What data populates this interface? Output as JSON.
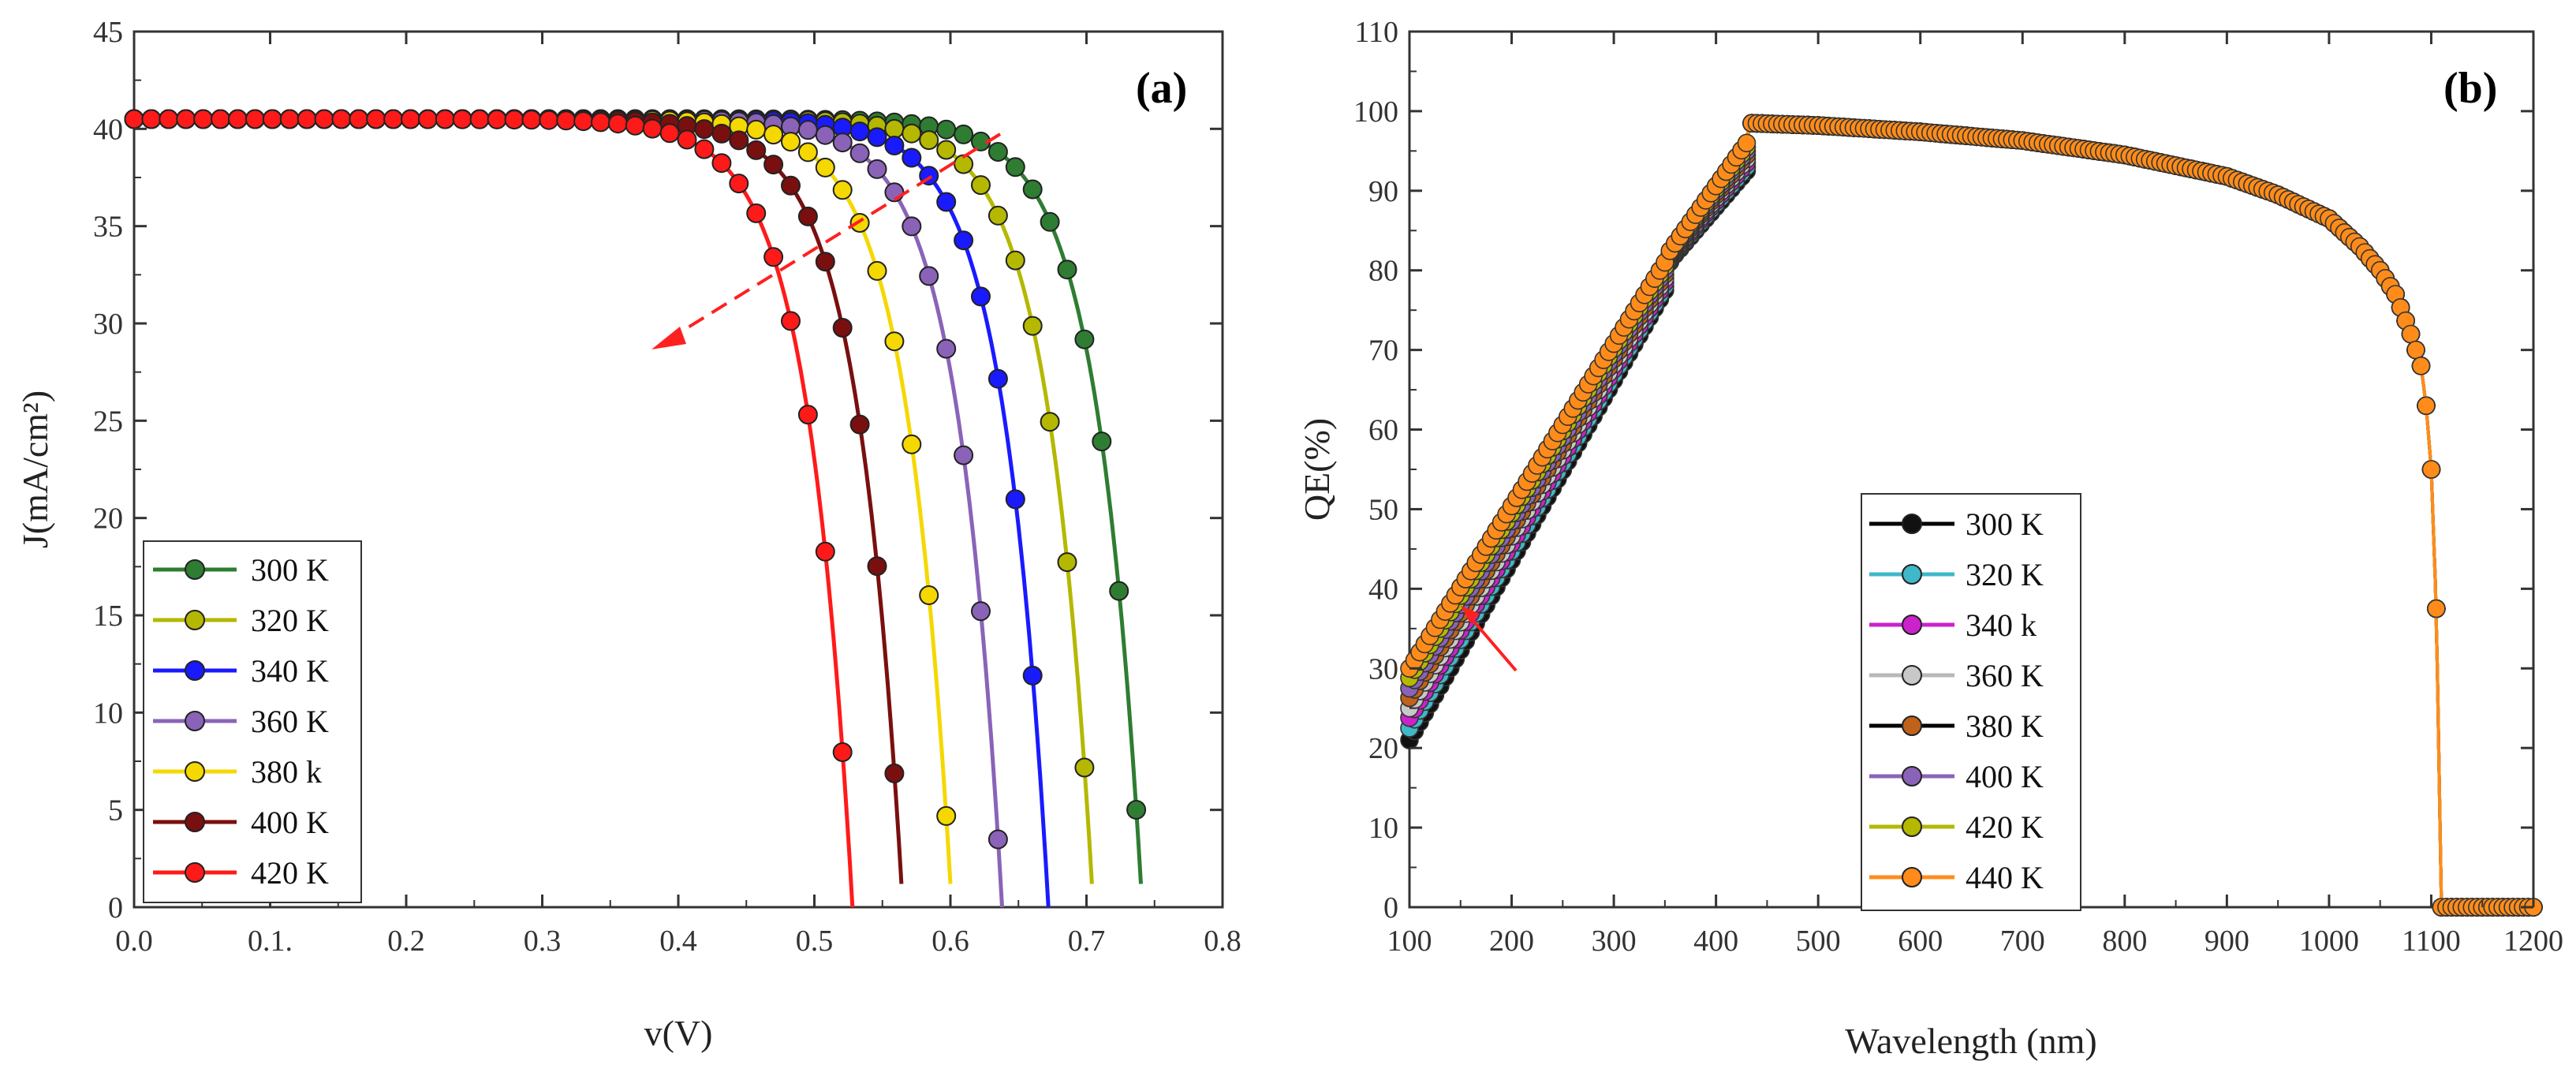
{
  "colors": {
    "300K": "#2e7d32",
    "320K": "#b5b800",
    "340K": "#1a1aff",
    "360K": "#8a63b8",
    "380k": "#f5d800",
    "400K": "#7a0f0f",
    "420K": "#ff1a1a",
    "440K": "#ff8c1a",
    "qe320": "#3fb8c8",
    "qe340": "#cc22cc",
    "qe360": "#b8b8b8",
    "qe380": "#c0621a",
    "arrow": "#ff2020"
  },
  "chart_data": [
    {
      "type": "line",
      "panel_label": "(a)",
      "title": "",
      "xlabel": "v(V)",
      "ylabel": "J(mA/cm²)",
      "xlim": [
        0,
        0.8
      ],
      "ylim": [
        0,
        45
      ],
      "x_ticks": [
        0,
        0.1,
        0.2,
        0.3,
        0.4,
        0.5,
        0.6,
        0.7,
        0.8
      ],
      "x_tick_labels": [
        "0.0",
        "0.1.",
        "0.2",
        "0.3",
        "0.4",
        "0.5",
        "0.6",
        "0.7",
        "0.8"
      ],
      "y_ticks": [
        0,
        5,
        10,
        15,
        20,
        25,
        30,
        35,
        40,
        45
      ],
      "y_tick_labels": [
        "0",
        "5",
        "10",
        "15",
        "20",
        "25",
        "30",
        "35",
        "40",
        "45"
      ],
      "legend_position": "bottom-left",
      "annotation": "dashed red arrow pointing toward lower voltage with increasing temperature",
      "series": [
        {
          "name": "300 K",
          "color_key": "300K",
          "jsc": 40.5,
          "voc": 0.741,
          "alpha": 30
        },
        {
          "name": "320 K",
          "color_key": "320K",
          "jsc": 40.5,
          "voc": 0.705,
          "alpha": 30
        },
        {
          "name": "340 K",
          "color_key": "340K",
          "jsc": 40.5,
          "voc": 0.672,
          "alpha": 30
        },
        {
          "name": "360 K",
          "color_key": "360K",
          "jsc": 40.5,
          "voc": 0.638,
          "alpha": 30
        },
        {
          "name": "380 k",
          "color_key": "380k",
          "jsc": 40.5,
          "voc": 0.601,
          "alpha": 30
        },
        {
          "name": "400 K",
          "color_key": "400K",
          "jsc": 40.5,
          "voc": 0.565,
          "alpha": 30
        },
        {
          "name": "420 K",
          "color_key": "420K",
          "jsc": 40.5,
          "voc": 0.528,
          "alpha": 30
        }
      ]
    },
    {
      "type": "line",
      "panel_label": "(b)",
      "title": "",
      "xlabel": "Wavelength (nm)",
      "ylabel": "QE(%)",
      "xlim": [
        100,
        1200
      ],
      "ylim": [
        0,
        110
      ],
      "x_ticks": [
        100,
        200,
        300,
        400,
        500,
        600,
        700,
        800,
        900,
        1000,
        1100,
        1200
      ],
      "x_tick_labels": [
        "100",
        "200",
        "300",
        "400",
        "500",
        "600",
        "700",
        "800",
        "900",
        "1000",
        "1100",
        "1200"
      ],
      "y_ticks": [
        0,
        10,
        20,
        30,
        40,
        50,
        60,
        70,
        80,
        90,
        100,
        110
      ],
      "y_tick_labels": [
        "0",
        "10",
        "20",
        "30",
        "40",
        "50",
        "60",
        "70",
        "80",
        "90",
        "100",
        "110"
      ],
      "legend_position": "center-left",
      "annotation": "red arrow near 150 nm indicating QE increase with temperature",
      "shared_profile": [
        [
          430,
          98.5
        ],
        [
          500,
          98.2
        ],
        [
          600,
          97.4
        ],
        [
          700,
          96.3
        ],
        [
          800,
          94.5
        ],
        [
          900,
          91.8
        ],
        [
          950,
          89.5
        ],
        [
          1000,
          86.5
        ],
        [
          1030,
          83.0
        ],
        [
          1050,
          80.0
        ],
        [
          1065,
          77.0
        ],
        [
          1080,
          72.0
        ],
        [
          1090,
          68.0
        ],
        [
          1095,
          63.0
        ],
        [
          1100,
          55.0
        ],
        [
          1105,
          37.5
        ],
        [
          1110,
          0
        ],
        [
          1200,
          0
        ]
      ],
      "series": [
        {
          "name": "300 K",
          "color_key": "300K",
          "marker_color": "#111111",
          "line_color": "#000000",
          "qe_at_100": 21.0,
          "qe_at_350": 77.5,
          "qe_at_360": 82.0,
          "qe_at_430": 92.5
        },
        {
          "name": "320 K",
          "color_key": "qe320",
          "marker_color": "#3fb8c8",
          "line_color": "#3fb8c8",
          "qe_at_100": 22.5,
          "qe_at_350": 78.0,
          "qe_at_360": 82.2,
          "qe_at_430": 93.0
        },
        {
          "name": "340 k",
          "color_key": "qe340",
          "marker_color": "#cc22cc",
          "line_color": "#cc22cc",
          "qe_at_100": 23.8,
          "qe_at_350": 78.5,
          "qe_at_360": 82.4,
          "qe_at_430": 93.5
        },
        {
          "name": "360 K",
          "color_key": "qe360",
          "marker_color": "#c8c8c8",
          "line_color": "#b8b8b8",
          "qe_at_100": 25.0,
          "qe_at_350": 79.0,
          "qe_at_360": 82.6,
          "qe_at_430": 94.0
        },
        {
          "name": "380 K",
          "color_key": "qe380",
          "marker_color": "#c0621a",
          "line_color": "#000000",
          "qe_at_100": 26.3,
          "qe_at_350": 79.5,
          "qe_at_360": 82.8,
          "qe_at_430": 94.5
        },
        {
          "name": "400 K",
          "color_key": "360K",
          "marker_color": "#8a63b8",
          "line_color": "#8a63b8",
          "qe_at_100": 27.5,
          "qe_at_350": 80.0,
          "qe_at_360": 83.0,
          "qe_at_430": 95.0
        },
        {
          "name": "420 K",
          "color_key": "320K",
          "marker_color": "#b5b800",
          "line_color": "#b5b800",
          "qe_at_100": 28.8,
          "qe_at_350": 80.5,
          "qe_at_360": 83.2,
          "qe_at_430": 95.5
        },
        {
          "name": "440 K",
          "color_key": "440K",
          "marker_color": "#ff8c1a",
          "line_color": "#ff8c1a",
          "qe_at_100": 30.0,
          "qe_at_350": 81.0,
          "qe_at_360": 83.4,
          "qe_at_430": 96.0
        }
      ]
    }
  ]
}
